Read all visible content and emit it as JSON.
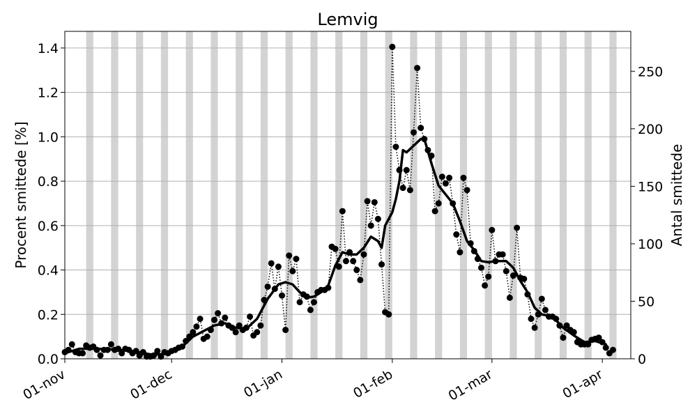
{
  "chart_data": {
    "type": "line",
    "title": "Lemvig",
    "ylabel": "Procent smittede [%]",
    "y2label": "Antal smittede",
    "x_range": [
      "2020-11-01",
      "2021-04-09"
    ],
    "ylim": [
      0,
      1.475
    ],
    "y2lim": [
      0,
      284.7
    ],
    "yticks": [
      "0.0",
      "0.2",
      "0.4",
      "0.6",
      "0.8",
      "1.0",
      "1.2",
      "1.4"
    ],
    "y2ticks": [
      "0",
      "50",
      "100",
      "150",
      "200",
      "250"
    ],
    "xticks": [
      {
        "date": "2020-11-01",
        "label": "01-nov"
      },
      {
        "date": "2020-12-01",
        "label": "01-dec"
      },
      {
        "date": "2021-01-01",
        "label": "01-jan"
      },
      {
        "date": "2021-02-01",
        "label": "01-feb"
      },
      {
        "date": "2021-03-01",
        "label": "01-mar"
      },
      {
        "date": "2021-04-01",
        "label": "01-apr"
      }
    ],
    "grid": "horizontal",
    "weekend_shading": true,
    "colors": {
      "weekend": "#d3d3d3",
      "grid": "#b0b0b0",
      "series": "#000000"
    },
    "series": [
      {
        "style": "dotted-line-with-markers",
        "points": [
          [
            "2020-11-01",
            0.03
          ],
          [
            "2020-11-02",
            0.04
          ],
          [
            "2020-11-03",
            0.065
          ],
          [
            "2020-11-04",
            0.03
          ],
          [
            "2020-11-05",
            0.025
          ],
          [
            "2020-11-06",
            0.025
          ],
          [
            "2020-11-07",
            0.06
          ],
          [
            "2020-11-08",
            0.05
          ],
          [
            "2020-11-09",
            0.055
          ],
          [
            "2020-11-10",
            0.04
          ],
          [
            "2020-11-11",
            0.015
          ],
          [
            "2020-11-12",
            0.04
          ],
          [
            "2020-11-13",
            0.04
          ],
          [
            "2020-11-14",
            0.065
          ],
          [
            "2020-11-15",
            0.04
          ],
          [
            "2020-11-16",
            0.045
          ],
          [
            "2020-11-17",
            0.025
          ],
          [
            "2020-11-18",
            0.045
          ],
          [
            "2020-11-19",
            0.04
          ],
          [
            "2020-11-20",
            0.025
          ],
          [
            "2020-11-21",
            0.035
          ],
          [
            "2020-11-22",
            0.015
          ],
          [
            "2020-11-23",
            0.03
          ],
          [
            "2020-11-24",
            0.01
          ],
          [
            "2020-11-25",
            0.01
          ],
          [
            "2020-11-26",
            0.015
          ],
          [
            "2020-11-27",
            0.035
          ],
          [
            "2020-11-28",
            0.01
          ],
          [
            "2020-11-29",
            0.03
          ],
          [
            "2020-11-30",
            0.025
          ],
          [
            "2020-12-01",
            0.035
          ],
          [
            "2020-12-02",
            0.04
          ],
          [
            "2020-12-03",
            0.05
          ],
          [
            "2020-12-04",
            0.055
          ],
          [
            "2020-12-05",
            0.08
          ],
          [
            "2020-12-06",
            0.1
          ],
          [
            "2020-12-07",
            0.12
          ],
          [
            "2020-12-08",
            0.145
          ],
          [
            "2020-12-09",
            0.18
          ],
          [
            "2020-12-10",
            0.09
          ],
          [
            "2020-12-11",
            0.1
          ],
          [
            "2020-12-12",
            0.13
          ],
          [
            "2020-12-13",
            0.175
          ],
          [
            "2020-12-14",
            0.205
          ],
          [
            "2020-12-15",
            0.16
          ],
          [
            "2020-12-16",
            0.185
          ],
          [
            "2020-12-17",
            0.15
          ],
          [
            "2020-12-18",
            0.14
          ],
          [
            "2020-12-19",
            0.12
          ],
          [
            "2020-12-20",
            0.15
          ],
          [
            "2020-12-21",
            0.13
          ],
          [
            "2020-12-22",
            0.14
          ],
          [
            "2020-12-23",
            0.19
          ],
          [
            "2020-12-24",
            0.105
          ],
          [
            "2020-12-25",
            0.12
          ],
          [
            "2020-12-26",
            0.15
          ],
          [
            "2020-12-27",
            0.265
          ],
          [
            "2020-12-28",
            0.325
          ],
          [
            "2020-12-29",
            0.43
          ],
          [
            "2020-12-30",
            0.315
          ],
          [
            "2020-12-31",
            0.415
          ],
          [
            "2021-01-01",
            0.285
          ],
          [
            "2021-01-02",
            0.13
          ],
          [
            "2021-01-03",
            0.465
          ],
          [
            "2021-01-04",
            0.395
          ],
          [
            "2021-01-05",
            0.45
          ],
          [
            "2021-01-06",
            0.255
          ],
          [
            "2021-01-07",
            0.29
          ],
          [
            "2021-01-08",
            0.28
          ],
          [
            "2021-01-09",
            0.22
          ],
          [
            "2021-01-10",
            0.255
          ],
          [
            "2021-01-11",
            0.3
          ],
          [
            "2021-01-12",
            0.31
          ],
          [
            "2021-01-13",
            0.31
          ],
          [
            "2021-01-14",
            0.32
          ],
          [
            "2021-01-15",
            0.505
          ],
          [
            "2021-01-16",
            0.495
          ],
          [
            "2021-01-17",
            0.415
          ],
          [
            "2021-01-18",
            0.665
          ],
          [
            "2021-01-19",
            0.44
          ],
          [
            "2021-01-20",
            0.48
          ],
          [
            "2021-01-21",
            0.44
          ],
          [
            "2021-01-22",
            0.4
          ],
          [
            "2021-01-23",
            0.355
          ],
          [
            "2021-01-24",
            0.47
          ],
          [
            "2021-01-25",
            0.71
          ],
          [
            "2021-01-26",
            0.6
          ],
          [
            "2021-01-27",
            0.705
          ],
          [
            "2021-01-28",
            0.63
          ],
          [
            "2021-01-29",
            0.425
          ],
          [
            "2021-01-30",
            0.21
          ],
          [
            "2021-01-31",
            0.2
          ],
          [
            "2021-02-01",
            1.405
          ],
          [
            "2021-02-02",
            0.955
          ],
          [
            "2021-02-03",
            0.85
          ],
          [
            "2021-02-04",
            0.77
          ],
          [
            "2021-02-05",
            0.85
          ],
          [
            "2021-02-06",
            0.76
          ],
          [
            "2021-02-07",
            1.02
          ],
          [
            "2021-02-08",
            1.31
          ],
          [
            "2021-02-09",
            1.04
          ],
          [
            "2021-02-10",
            0.99
          ],
          [
            "2021-02-11",
            0.94
          ],
          [
            "2021-02-12",
            0.915
          ],
          [
            "2021-02-13",
            0.665
          ],
          [
            "2021-02-14",
            0.7
          ],
          [
            "2021-02-15",
            0.82
          ],
          [
            "2021-02-16",
            0.79
          ],
          [
            "2021-02-17",
            0.815
          ],
          [
            "2021-02-18",
            0.7
          ],
          [
            "2021-02-19",
            0.56
          ],
          [
            "2021-02-20",
            0.48
          ],
          [
            "2021-02-21",
            0.815
          ],
          [
            "2021-02-22",
            0.76
          ],
          [
            "2021-02-23",
            0.52
          ],
          [
            "2021-02-24",
            0.485
          ],
          [
            "2021-02-25",
            0.45
          ],
          [
            "2021-02-26",
            0.41
          ],
          [
            "2021-02-27",
            0.33
          ],
          [
            "2021-02-28",
            0.37
          ],
          [
            "2021-03-01",
            0.58
          ],
          [
            "2021-03-02",
            0.44
          ],
          [
            "2021-03-03",
            0.47
          ],
          [
            "2021-03-04",
            0.47
          ],
          [
            "2021-03-05",
            0.395
          ],
          [
            "2021-03-06",
            0.275
          ],
          [
            "2021-03-07",
            0.375
          ],
          [
            "2021-03-08",
            0.59
          ],
          [
            "2021-03-09",
            0.365
          ],
          [
            "2021-03-10",
            0.36
          ],
          [
            "2021-03-11",
            0.29
          ],
          [
            "2021-03-12",
            0.18
          ],
          [
            "2021-03-13",
            0.14
          ],
          [
            "2021-03-14",
            0.2
          ],
          [
            "2021-03-15",
            0.27
          ],
          [
            "2021-03-16",
            0.22
          ],
          [
            "2021-03-17",
            0.19
          ],
          [
            "2021-03-18",
            0.19
          ],
          [
            "2021-03-19",
            0.18
          ],
          [
            "2021-03-20",
            0.15
          ],
          [
            "2021-03-21",
            0.095
          ],
          [
            "2021-03-22",
            0.15
          ],
          [
            "2021-03-23",
            0.13
          ],
          [
            "2021-03-24",
            0.12
          ],
          [
            "2021-03-25",
            0.075
          ],
          [
            "2021-03-26",
            0.065
          ],
          [
            "2021-03-27",
            0.065
          ],
          [
            "2021-03-28",
            0.065
          ],
          [
            "2021-03-29",
            0.085
          ],
          [
            "2021-03-30",
            0.09
          ],
          [
            "2021-03-31",
            0.095
          ],
          [
            "2021-04-01",
            0.075
          ],
          [
            "2021-04-02",
            0.05
          ],
          [
            "2021-04-03",
            0.025
          ],
          [
            "2021-04-04",
            0.04
          ]
        ]
      },
      {
        "style": "solid-thick-line",
        "points": [
          [
            "2020-11-01",
            0.025
          ],
          [
            "2020-11-05",
            0.045
          ],
          [
            "2020-11-10",
            0.045
          ],
          [
            "2020-11-15",
            0.042
          ],
          [
            "2020-11-20",
            0.035
          ],
          [
            "2020-11-25",
            0.02
          ],
          [
            "2020-11-28",
            0.02
          ],
          [
            "2020-12-01",
            0.032
          ],
          [
            "2020-12-04",
            0.055
          ],
          [
            "2020-12-07",
            0.1
          ],
          [
            "2020-12-10",
            0.125
          ],
          [
            "2020-12-13",
            0.15
          ],
          [
            "2020-12-16",
            0.16
          ],
          [
            "2020-12-19",
            0.14
          ],
          [
            "2020-12-22",
            0.135
          ],
          [
            "2020-12-25",
            0.18
          ],
          [
            "2020-12-28",
            0.27
          ],
          [
            "2020-12-31",
            0.335
          ],
          [
            "2021-01-02",
            0.345
          ],
          [
            "2021-01-04",
            0.335
          ],
          [
            "2021-01-06",
            0.3
          ],
          [
            "2021-01-08",
            0.275
          ],
          [
            "2021-01-10",
            0.28
          ],
          [
            "2021-01-12",
            0.3
          ],
          [
            "2021-01-14",
            0.33
          ],
          [
            "2021-01-16",
            0.42
          ],
          [
            "2021-01-18",
            0.48
          ],
          [
            "2021-01-20",
            0.47
          ],
          [
            "2021-01-22",
            0.47
          ],
          [
            "2021-01-24",
            0.5
          ],
          [
            "2021-01-26",
            0.55
          ],
          [
            "2021-01-28",
            0.53
          ],
          [
            "2021-01-29",
            0.5
          ],
          [
            "2021-01-30",
            0.6
          ],
          [
            "2021-02-01",
            0.66
          ],
          [
            "2021-02-02",
            0.72
          ],
          [
            "2021-02-03",
            0.8
          ],
          [
            "2021-02-04",
            0.94
          ],
          [
            "2021-02-05",
            0.93
          ],
          [
            "2021-02-07",
            0.96
          ],
          [
            "2021-02-09",
            0.99
          ],
          [
            "2021-02-10",
            0.99
          ],
          [
            "2021-02-12",
            0.88
          ],
          [
            "2021-02-14",
            0.78
          ],
          [
            "2021-02-16",
            0.74
          ],
          [
            "2021-02-18",
            0.7
          ],
          [
            "2021-02-20",
            0.62
          ],
          [
            "2021-02-22",
            0.53
          ],
          [
            "2021-02-24",
            0.49
          ],
          [
            "2021-02-26",
            0.44
          ],
          [
            "2021-02-28",
            0.435
          ],
          [
            "2021-03-02",
            0.44
          ],
          [
            "2021-03-05",
            0.44
          ],
          [
            "2021-03-07",
            0.41
          ],
          [
            "2021-03-09",
            0.35
          ],
          [
            "2021-03-11",
            0.3
          ],
          [
            "2021-03-13",
            0.23
          ],
          [
            "2021-03-15",
            0.2
          ],
          [
            "2021-03-18",
            0.19
          ],
          [
            "2021-03-21",
            0.14
          ],
          [
            "2021-03-24",
            0.105
          ],
          [
            "2021-03-27",
            0.075
          ],
          [
            "2021-03-30",
            0.08
          ],
          [
            "2021-04-02",
            0.065
          ]
        ]
      }
    ]
  }
}
